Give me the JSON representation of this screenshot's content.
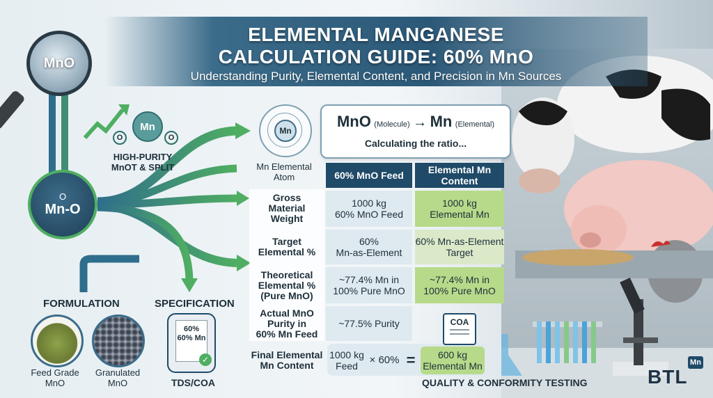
{
  "header": {
    "title_line1": "ELEMENTAL MANGANESE",
    "title_line2": "CALCULATION GUIDE: 60% MnO",
    "subtitle": "Understanding Purity, Elemental Content, and Precision in Mn Sources"
  },
  "left": {
    "magnifier_label": "MnO",
    "molecule_top_label": "Mn",
    "molecule_o": "O",
    "hp_label_line1": "HIGH-PURITY",
    "hp_label_line2": "MnOT & SPLIT",
    "hub_label": "Mn-O",
    "hub_o": "O",
    "formulation": "FORMULATION",
    "specification": "SPECIFICATION",
    "feed_grade_line1": "Feed Grade",
    "feed_grade_line2": "MnO",
    "granulated_line1": "Granulated",
    "granulated_line2": "MnO",
    "tds_doc_line1": "60%",
    "tds_doc_line2": "60% Mn",
    "tds_label": "TDS/COA"
  },
  "atom": {
    "symbol": "Mn",
    "label_line1": "Mn Elemental",
    "label_line2": "Atom"
  },
  "bubble": {
    "mno": "MnO",
    "mno_sub": "(Molecule)",
    "arrow": "→",
    "mn": "Mn",
    "mn_sub": "(Elemental)",
    "ratio": "Calculating the ratio..."
  },
  "table": {
    "col1": "60% MnO Feed",
    "col2_line1": "Elemental Mn",
    "col2_line2": "Content",
    "rows": [
      {
        "label": [
          "Gross",
          "Material",
          "Weight"
        ],
        "v1": [
          "1000 kg",
          "60% MnO Feed"
        ],
        "v2": [
          "1000 kg",
          "Elemental Mn"
        ]
      },
      {
        "label": [
          "Target",
          "Elemental %"
        ],
        "v1": [
          "60%",
          "Mn-as-Element"
        ],
        "v2": [
          "60% Mn-as-Element",
          "Target"
        ]
      },
      {
        "label": [
          "Theoretical",
          "Elemental %",
          "(Pure MnO)"
        ],
        "v1": [
          "~77.4% Mn in",
          "100% Pure MnO"
        ],
        "v2": [
          "~77.4% Mn in",
          "100% Pure MnO"
        ]
      },
      {
        "label": [
          "Actual MnO",
          "Purity in",
          "60% Mn Feed"
        ],
        "v1": [
          "~77.5% Purity"
        ],
        "v2": []
      }
    ],
    "final_label": [
      "Final Elemental",
      "Mn Content"
    ],
    "final_feed": [
      "1000 kg",
      "Feed"
    ],
    "final_times": "× 60%",
    "final_eq": "=",
    "final_result": [
      "600 kg",
      "Elemental Mn"
    ]
  },
  "right": {
    "coa": "COA",
    "quality": "QUALITY & CONFORMITY TESTING",
    "brand": "BTL",
    "brand_badge": "Mn"
  },
  "colors": {
    "navy": "#1f4a68",
    "green": "#b7da8a",
    "arrow_green": "#4fae62",
    "arrow_blue": "#2f6d8c"
  }
}
